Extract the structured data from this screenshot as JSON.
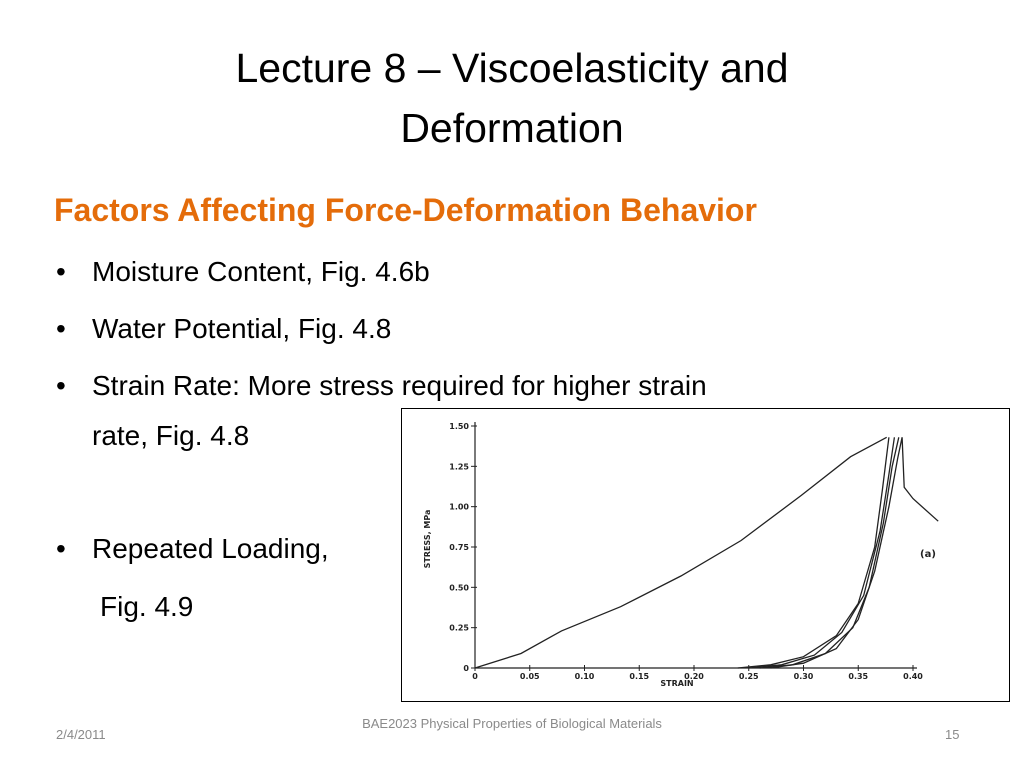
{
  "header": {
    "title_lines": [
      "Lecture 8 – Viscoelasticity and",
      "Deformation"
    ]
  },
  "subtitle": "Factors Affecting Force-Deformation Behavior",
  "bullets": [
    {
      "lines": [
        "Moisture Content, Fig. 4.6b"
      ]
    },
    {
      "lines": [
        "Water Potential, Fig. 4.8"
      ]
    },
    {
      "lines": [
        "Strain Rate: More stress required for higher strain",
        "rate, Fig. 4.8"
      ]
    },
    {
      "lines": [
        "Repeated Loading,",
        "Fig. 4.9"
      ]
    }
  ],
  "footer": {
    "date": "2/4/2011",
    "center": "BAE2023 Physical Properties of Biological Materials",
    "page": "15"
  },
  "chart_data": {
    "type": "line",
    "x_label": "STRAIN",
    "y_label": "STRESS, MPa",
    "annotation": "(a)",
    "xlim": [
      0,
      0.4
    ],
    "ylim": [
      0,
      1.5
    ],
    "xticks": [
      0,
      0.05,
      {
        "value": 0.1,
        "label": "0.10"
      },
      0.15,
      {
        "value": 0.2,
        "label": "0.20"
      },
      0.25,
      {
        "value": 0.3,
        "label": "0.30"
      },
      0.35,
      {
        "value": 0.4,
        "label": "0.40"
      }
    ],
    "yticks": [
      0,
      0.25,
      {
        "value": 0.5,
        "label": "0.50"
      },
      0.75,
      {
        "value": 1,
        "label": "1.00"
      },
      1.25,
      {
        "value": 1.5,
        "label": "1.50"
      }
    ],
    "series": [
      {
        "color": "#222222",
        "x": [
          0,
          0.042,
          0.079,
          0.133,
          0.188,
          0.243,
          0.298,
          0.343,
          0.376
        ],
        "values": [
          0,
          0.09,
          0.23,
          0.38,
          0.57,
          0.79,
          1.07,
          1.31,
          1.43
        ]
      },
      {
        "color": "#222222",
        "x": [
          0.24,
          0.27,
          0.3,
          0.33,
          0.35,
          0.365,
          0.372,
          0.378
        ],
        "values": [
          0,
          0.02,
          0.07,
          0.2,
          0.4,
          0.75,
          1.1,
          1.43
        ]
      },
      {
        "color": "#222222",
        "x": [
          0.25,
          0.28,
          0.31,
          0.335,
          0.355,
          0.37,
          0.378,
          0.383
        ],
        "values": [
          0,
          0.02,
          0.08,
          0.22,
          0.45,
          0.85,
          1.2,
          1.43
        ]
      },
      {
        "color": "#222222",
        "x": [
          0.26,
          0.29,
          0.32,
          0.345,
          0.36,
          0.373,
          0.381,
          0.387
        ],
        "values": [
          0,
          0.02,
          0.09,
          0.25,
          0.5,
          0.9,
          1.25,
          1.43
        ]
      },
      {
        "color": "#222222",
        "x": [
          0.27,
          0.3,
          0.33,
          0.35,
          0.365,
          0.378,
          0.386,
          0.39,
          0.392,
          0.4,
          0.423
        ],
        "values": [
          0,
          0.03,
          0.12,
          0.3,
          0.6,
          1.0,
          1.3,
          1.43,
          1.12,
          1.05,
          0.91
        ]
      }
    ]
  }
}
